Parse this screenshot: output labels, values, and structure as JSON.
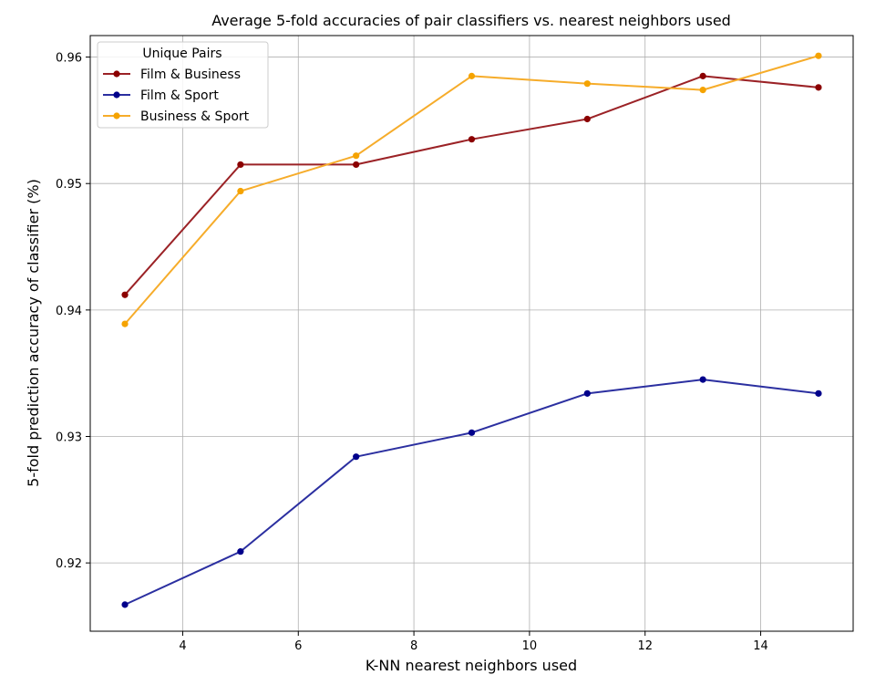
{
  "chart_data": {
    "type": "line",
    "title": "Average 5-fold accuracies of pair classifiers vs. nearest neighbors used",
    "xlabel": "K-NN nearest neighbors used",
    "ylabel": "5-fold prediction accuracy of classifier (%)",
    "xlim": [
      2.4,
      15.6
    ],
    "ylim": [
      0.9146,
      0.9617
    ],
    "xticks": [
      4,
      6,
      8,
      10,
      12,
      14
    ],
    "xtick_labels": [
      "4",
      "6",
      "8",
      "10",
      "12",
      "14"
    ],
    "yticks": [
      0.92,
      0.93,
      0.94,
      0.95,
      0.96
    ],
    "ytick_labels": [
      "0.92",
      "0.93",
      "0.94",
      "0.95",
      "0.96"
    ],
    "grid": true,
    "legend": {
      "title": "Unique Pairs",
      "placement": "top-left"
    },
    "x": [
      3,
      5,
      7,
      9,
      11,
      13,
      15
    ],
    "series": [
      {
        "name": "Film & Business",
        "color": "#9b2226",
        "marker_color": "#8b0000",
        "values": [
          0.9412,
          0.9515,
          0.9515,
          0.9535,
          0.9551,
          0.9585,
          0.9576
        ]
      },
      {
        "name": "Film & Sport",
        "color": "#2b2fa0",
        "marker_color": "#00008b",
        "values": [
          0.9167,
          0.9209,
          0.9284,
          0.9303,
          0.9334,
          0.9345,
          0.9334
        ]
      },
      {
        "name": "Business & Sport",
        "color": "#f6ac2a",
        "marker_color": "#f5a300",
        "values": [
          0.9389,
          0.9494,
          0.9522,
          0.9585,
          0.9579,
          0.9574,
          0.9601
        ]
      }
    ]
  }
}
